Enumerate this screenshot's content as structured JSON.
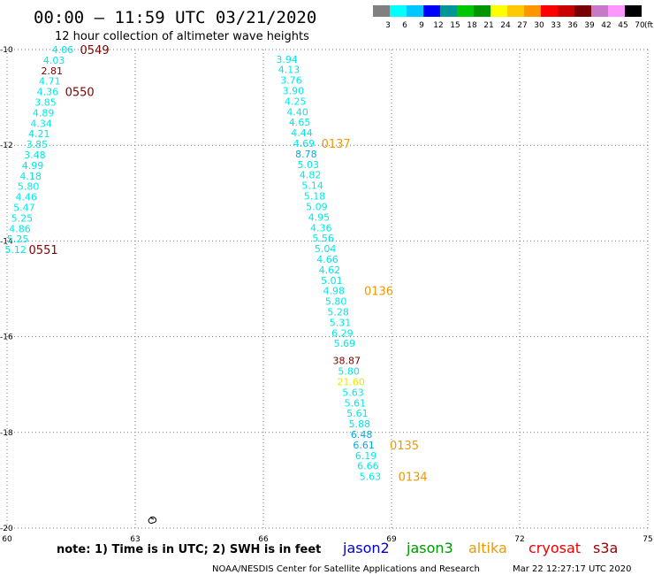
{
  "title": "00:00 – 11:59 UTC 03/21/2020",
  "subtitle": "12 hour collection of altimeter wave heights",
  "legend": {
    "colors": [
      "#808080",
      "#00ffff",
      "#00c8ff",
      "#0000ff",
      "#009696",
      "#00c800",
      "#009600",
      "#ffff00",
      "#ffc800",
      "#ff9600",
      "#ff0000",
      "#c80000",
      "#780000",
      "#c878c8",
      "#ff96ff",
      "#000000"
    ],
    "labels": [
      "3",
      "6",
      "9",
      "12",
      "15",
      "18",
      "21",
      "24",
      "27",
      "30",
      "33",
      "36",
      "39",
      "42",
      "45",
      "70"
    ],
    "unit": "(ft)"
  },
  "chart_data": {
    "type": "scatter",
    "title": "00:00 – 11:59 UTC 03/21/2020",
    "subtitle": "12 hour collection of altimeter wave heights",
    "xlim": [
      60,
      75
    ],
    "ylim": [
      -20,
      -10
    ],
    "xticks": [
      "60",
      "63",
      "66",
      "69",
      "72",
      "75"
    ],
    "yticks": [
      "-10",
      "-12",
      "-14",
      "-16",
      "-18",
      "-20"
    ],
    "grid": true,
    "colors": {
      "cyan": "#00e8e8",
      "lightblue": "#00aaee",
      "yellow": "#e8e800",
      "darkred": "#800000",
      "orange": "#ee9900"
    },
    "series": [
      {
        "points": [
          {
            "x": 61.3,
            "y": -10.0,
            "v": "4.06",
            "c": "cyan"
          },
          {
            "x": 61.1,
            "y": -10.22,
            "v": "4.03",
            "c": "cyan"
          },
          {
            "x": 61.05,
            "y": -10.44,
            "v": "2.81",
            "c": "darkred"
          },
          {
            "x": 61.0,
            "y": -10.66,
            "v": "4.71",
            "c": "cyan"
          },
          {
            "x": 60.95,
            "y": -10.88,
            "v": "4.36",
            "c": "cyan"
          },
          {
            "x": 60.9,
            "y": -11.1,
            "v": "3.85",
            "c": "cyan"
          },
          {
            "x": 60.85,
            "y": -11.32,
            "v": "4.89",
            "c": "cyan"
          },
          {
            "x": 60.8,
            "y": -11.54,
            "v": "4.34",
            "c": "cyan"
          },
          {
            "x": 60.75,
            "y": -11.76,
            "v": "4.21",
            "c": "cyan"
          },
          {
            "x": 60.7,
            "y": -11.98,
            "v": "3.85",
            "c": "cyan"
          },
          {
            "x": 60.65,
            "y": -12.2,
            "v": "3.48",
            "c": "cyan"
          },
          {
            "x": 60.6,
            "y": -12.42,
            "v": "4.99",
            "c": "cyan"
          },
          {
            "x": 60.55,
            "y": -12.64,
            "v": "4.18",
            "c": "cyan"
          },
          {
            "x": 60.5,
            "y": -12.86,
            "v": "5.80",
            "c": "cyan"
          },
          {
            "x": 60.45,
            "y": -13.08,
            "v": "4.46",
            "c": "cyan"
          },
          {
            "x": 60.4,
            "y": -13.3,
            "v": "5.47",
            "c": "cyan"
          },
          {
            "x": 60.35,
            "y": -13.52,
            "v": "5.25",
            "c": "cyan"
          },
          {
            "x": 60.3,
            "y": -13.74,
            "v": "4.86",
            "c": "cyan"
          },
          {
            "x": 60.25,
            "y": -13.96,
            "v": "5.25",
            "c": "cyan"
          },
          {
            "x": 60.2,
            "y": -14.18,
            "v": "5.12",
            "c": "cyan"
          },
          {
            "x": 66.55,
            "y": -10.2,
            "v": "3.94",
            "c": "cyan"
          },
          {
            "x": 66.6,
            "y": -10.42,
            "v": "4.13",
            "c": "cyan"
          },
          {
            "x": 66.65,
            "y": -10.64,
            "v": "3.76",
            "c": "cyan"
          },
          {
            "x": 66.7,
            "y": -10.86,
            "v": "3.90",
            "c": "cyan"
          },
          {
            "x": 66.75,
            "y": -11.08,
            "v": "4.25",
            "c": "cyan"
          },
          {
            "x": 66.8,
            "y": -11.3,
            "v": "4.40",
            "c": "cyan"
          },
          {
            "x": 66.85,
            "y": -11.52,
            "v": "4.65",
            "c": "cyan"
          },
          {
            "x": 66.9,
            "y": -11.74,
            "v": "4.44",
            "c": "cyan"
          },
          {
            "x": 66.95,
            "y": -11.96,
            "v": "4.69",
            "c": "cyan"
          },
          {
            "x": 67.0,
            "y": -12.18,
            "v": "8.78",
            "c": "lightblue"
          },
          {
            "x": 67.05,
            "y": -12.4,
            "v": "5.03",
            "c": "cyan"
          },
          {
            "x": 67.1,
            "y": -12.62,
            "v": "4.82",
            "c": "cyan"
          },
          {
            "x": 67.15,
            "y": -12.84,
            "v": "5.14",
            "c": "cyan"
          },
          {
            "x": 67.2,
            "y": -13.06,
            "v": "5.18",
            "c": "cyan"
          },
          {
            "x": 67.25,
            "y": -13.28,
            "v": "5.09",
            "c": "cyan"
          },
          {
            "x": 67.3,
            "y": -13.5,
            "v": "4.95",
            "c": "cyan"
          },
          {
            "x": 67.35,
            "y": -13.72,
            "v": "4.36",
            "c": "cyan"
          },
          {
            "x": 67.4,
            "y": -13.94,
            "v": "5.56",
            "c": "cyan"
          },
          {
            "x": 67.45,
            "y": -14.16,
            "v": "5.04",
            "c": "cyan"
          },
          {
            "x": 67.5,
            "y": -14.38,
            "v": "4.66",
            "c": "cyan"
          },
          {
            "x": 67.55,
            "y": -14.6,
            "v": "4.62",
            "c": "cyan"
          },
          {
            "x": 67.6,
            "y": -14.82,
            "v": "5.01",
            "c": "cyan"
          },
          {
            "x": 67.65,
            "y": -15.04,
            "v": "4.98",
            "c": "cyan"
          },
          {
            "x": 67.7,
            "y": -15.26,
            "v": "5.80",
            "c": "cyan"
          },
          {
            "x": 67.75,
            "y": -15.48,
            "v": "5.28",
            "c": "cyan"
          },
          {
            "x": 67.8,
            "y": -15.7,
            "v": "5.31",
            "c": "cyan"
          },
          {
            "x": 67.85,
            "y": -15.92,
            "v": "6.29",
            "c": "cyan"
          },
          {
            "x": 67.9,
            "y": -16.14,
            "v": "5.69",
            "c": "cyan"
          },
          {
            "x": 67.95,
            "y": -16.5,
            "v": "38.87",
            "c": "darkred"
          },
          {
            "x": 68.0,
            "y": -16.72,
            "v": "5.80",
            "c": "cyan"
          },
          {
            "x": 68.05,
            "y": -16.94,
            "v": "21.60",
            "c": "yellow"
          },
          {
            "x": 68.1,
            "y": -17.16,
            "v": "5.63",
            "c": "cyan"
          },
          {
            "x": 68.15,
            "y": -17.38,
            "v": "5.61",
            "c": "cyan"
          },
          {
            "x": 68.2,
            "y": -17.6,
            "v": "5.61",
            "c": "cyan"
          },
          {
            "x": 68.25,
            "y": -17.82,
            "v": "5.88",
            "c": "cyan"
          },
          {
            "x": 68.3,
            "y": -18.04,
            "v": "6.48",
            "c": "lightblue"
          },
          {
            "x": 68.35,
            "y": -18.26,
            "v": "6.61",
            "c": "lightblue"
          },
          {
            "x": 68.4,
            "y": -18.48,
            "v": "6.19",
            "c": "cyan"
          },
          {
            "x": 68.45,
            "y": -18.7,
            "v": "6.66",
            "c": "cyan"
          },
          {
            "x": 68.5,
            "y": -18.92,
            "v": "5.63",
            "c": "cyan"
          }
        ]
      }
    ],
    "annotations": [
      {
        "x": 62.05,
        "y": -10.0,
        "text": "0549",
        "c": "darkred"
      },
      {
        "x": 61.7,
        "y": -10.88,
        "text": "0550",
        "c": "darkred"
      },
      {
        "x": 60.85,
        "y": -14.18,
        "text": "0551",
        "c": "darkred"
      },
      {
        "x": 67.7,
        "y": -11.96,
        "text": "0137",
        "c": "orange"
      },
      {
        "x": 68.7,
        "y": -15.04,
        "text": "0136",
        "c": "orange"
      },
      {
        "x": 69.3,
        "y": -18.26,
        "text": "0135",
        "c": "orange"
      },
      {
        "x": 69.5,
        "y": -18.92,
        "text": "0134",
        "c": "orange"
      }
    ]
  },
  "footer": {
    "note": "note: 1) Time is in UTC; 2) SWH is in feet",
    "satellites": [
      {
        "name": "jason2",
        "color": "#0000cc"
      },
      {
        "name": "jason3",
        "color": "#009900"
      },
      {
        "name": "altika",
        "color": "#ee9900"
      },
      {
        "name": "cryosat",
        "color": "#ee0000"
      },
      {
        "name": "s3a",
        "color": "#990000"
      }
    ],
    "credit": "NOAA/NESDIS Center for Satellite Applications and Research",
    "timestamp": "Mar 22 12:27:17 UTC 2020"
  }
}
